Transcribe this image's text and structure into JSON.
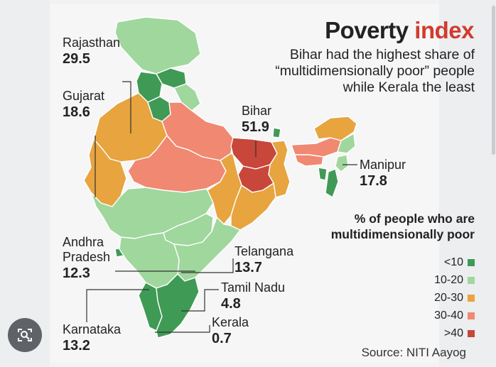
{
  "title": {
    "main": "Poverty",
    "accent": "index"
  },
  "subtitle": "Bihar had the highest share of “multidimensionally poor” people while Kerala the least",
  "callouts": [
    {
      "id": "rajasthan",
      "name": "Rajasthan",
      "value": "29.5"
    },
    {
      "id": "gujarat",
      "name": "Gujarat",
      "value": "18.6"
    },
    {
      "id": "bihar",
      "name": "Bihar",
      "value": "51.9"
    },
    {
      "id": "manipur",
      "name": "Manipur",
      "value": "17.8"
    },
    {
      "id": "andhra-pradesh",
      "name": "Andhra Pradesh",
      "value": "12.3"
    },
    {
      "id": "telangana",
      "name": "Telangana",
      "value": "13.7"
    },
    {
      "id": "tamil-nadu",
      "name": "Tamil Nadu",
      "value": "4.8"
    },
    {
      "id": "kerala",
      "name": "Kerala",
      "value": "0.7"
    },
    {
      "id": "karnataka",
      "name": "Karnataka",
      "value": "13.2"
    }
  ],
  "legend": {
    "title": "% of people who are multidimensionally poor",
    "bins": [
      {
        "label": "<10",
        "color": "#3f9a56"
      },
      {
        "label": "10-20",
        "color": "#9fd79d"
      },
      {
        "label": "20-30",
        "color": "#e7a43f"
      },
      {
        "label": "30-40",
        "color": "#f08872"
      },
      {
        "label": ">40",
        "color": "#c8463a"
      }
    ]
  },
  "source": "Source: NITI Aayog",
  "colors": {
    "lt10": "#3f9a56",
    "b10_20": "#9fd79d",
    "b20_30": "#e7a43f",
    "b30_40": "#f08872",
    "gt40": "#c8463a",
    "accent": "#d13b2e",
    "border": "#ffffff"
  },
  "icons": {
    "lens": "camera-search-icon"
  }
}
